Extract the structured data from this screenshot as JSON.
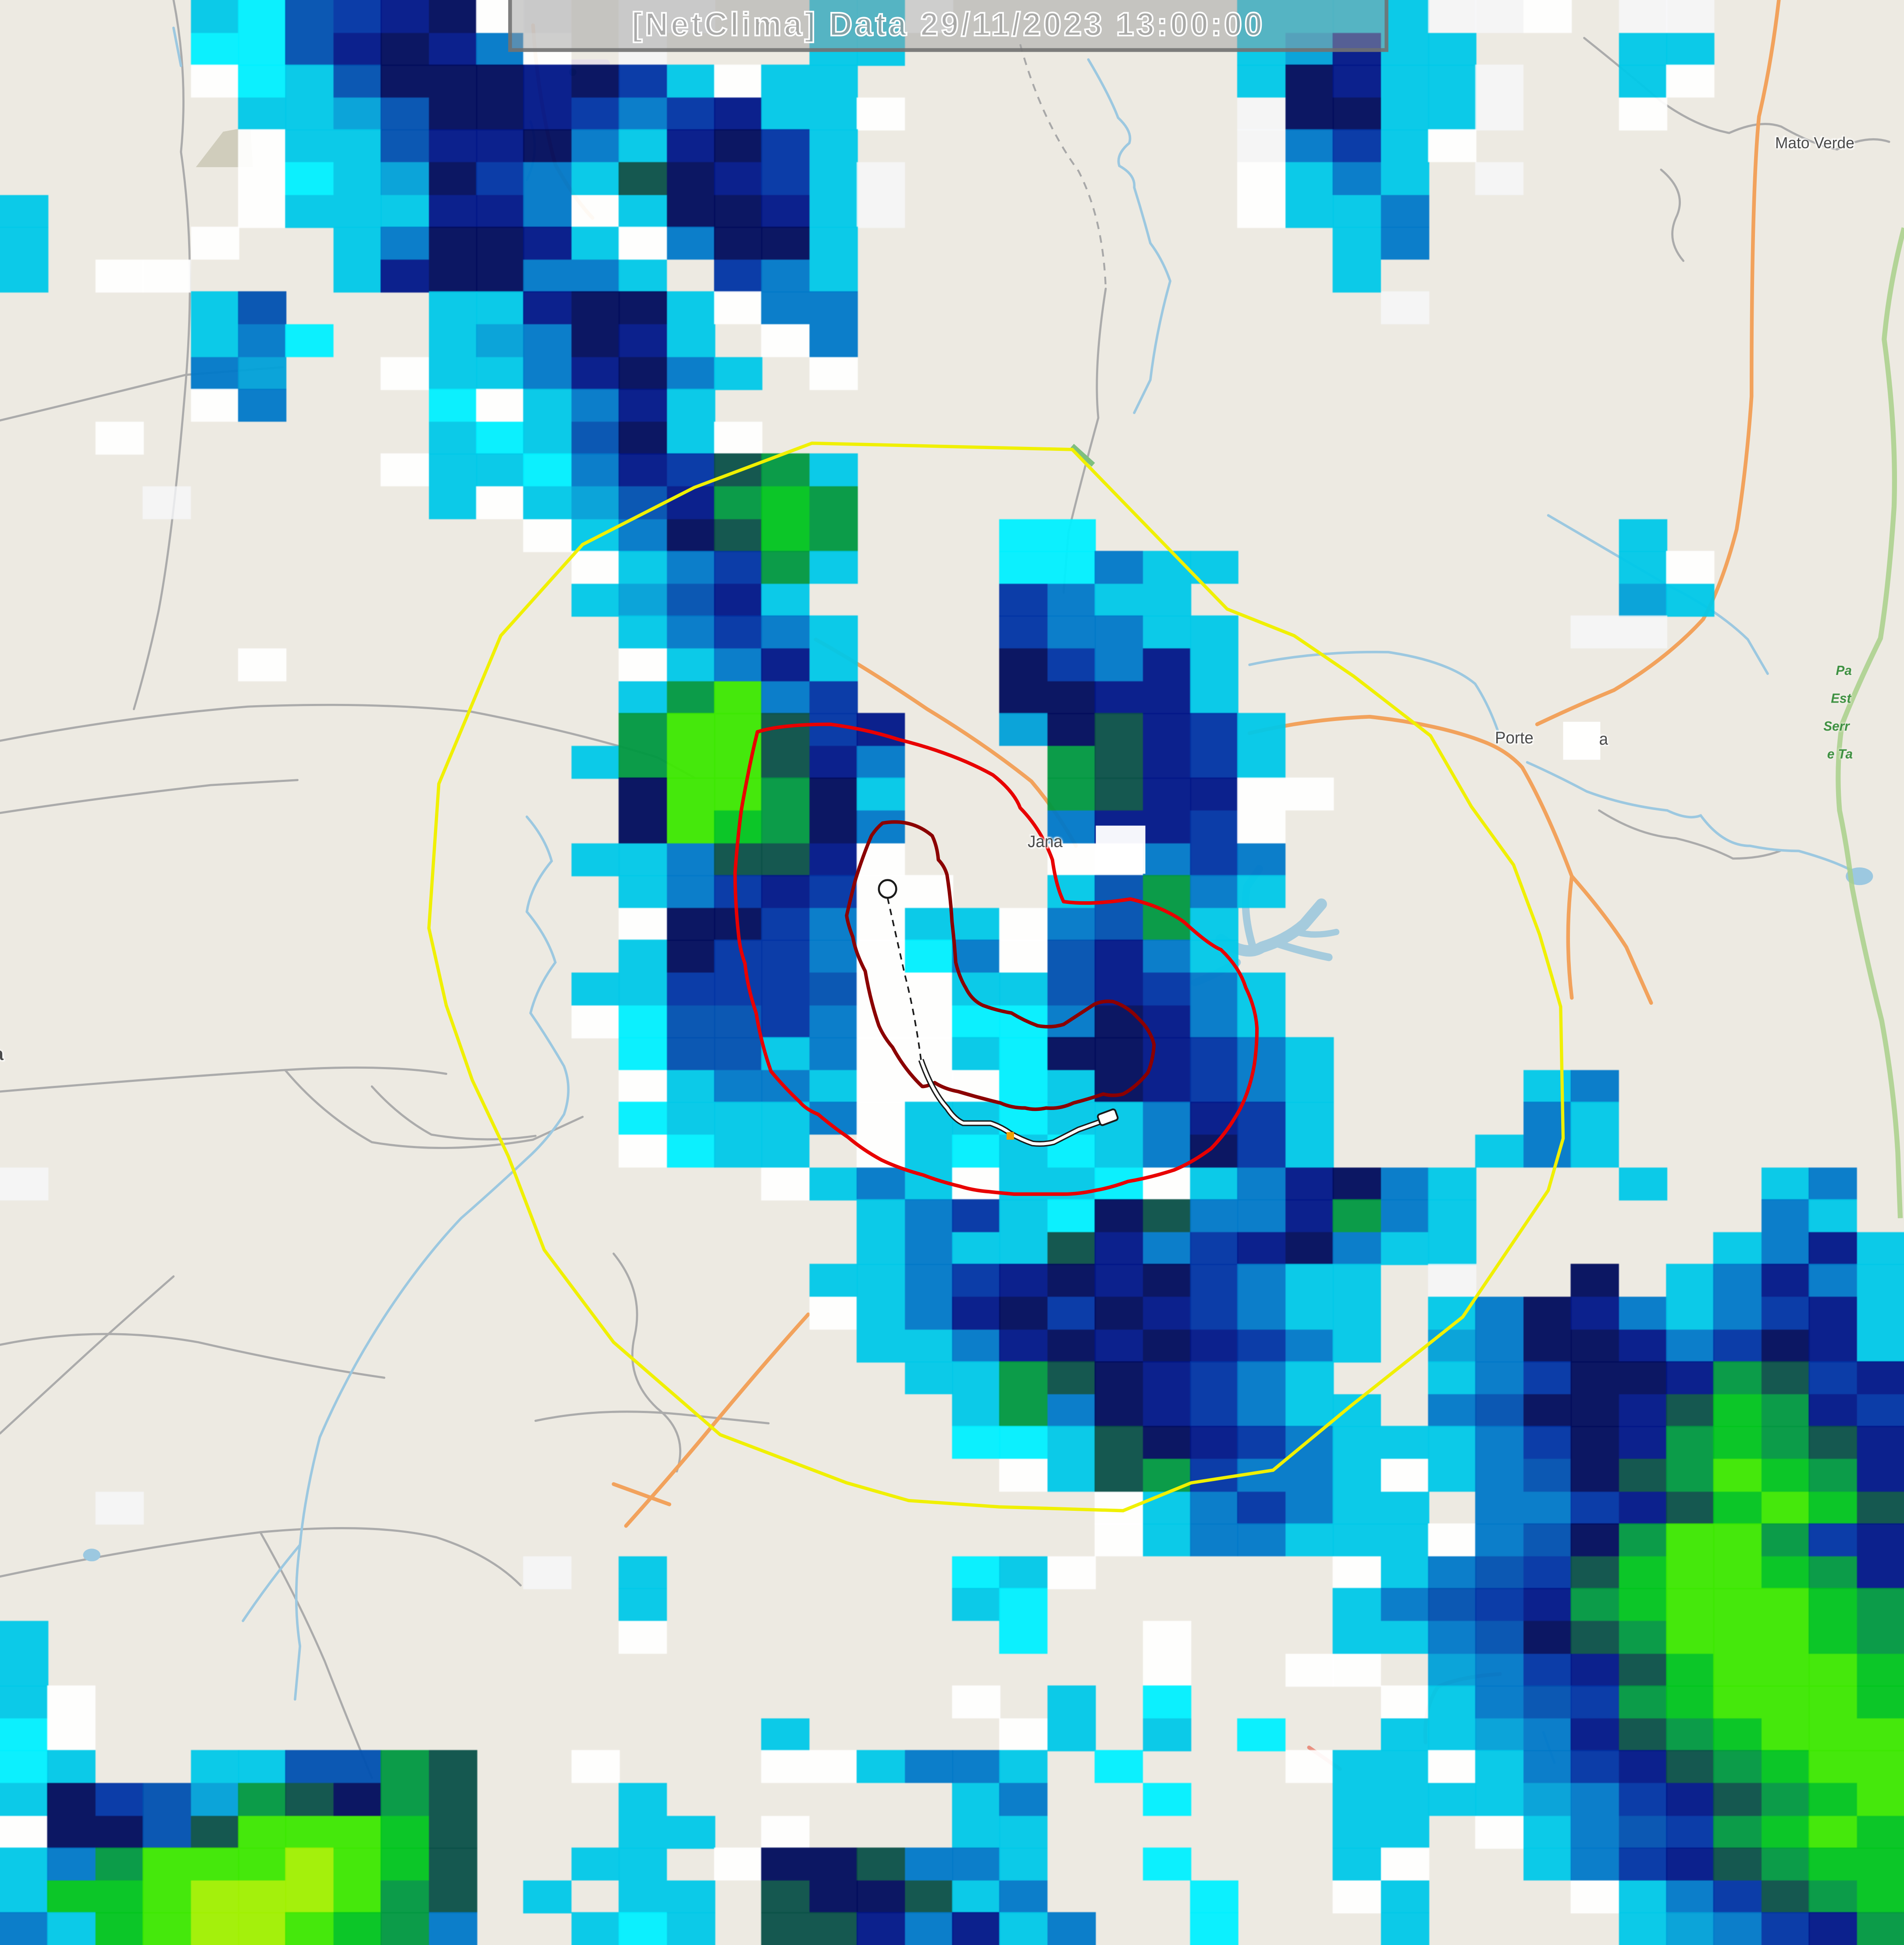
{
  "title_bar": {
    "text": "[NetClima] Data 29/11/2023 13:00:00"
  },
  "map_labels": {
    "city_top_right": "Mato Verde",
    "city_right_part1": "Porte",
    "city_right_part2": "a",
    "city_center": "Jana",
    "city_left_clipped": "a",
    "park_lines": [
      "Pa",
      "Est",
      "Serr",
      "e Ta"
    ]
  },
  "overlays": {
    "range_ring_color": "#F0F000",
    "warning_ring_color": "#E80000",
    "severe_ring_color": "#8B0000",
    "track_color": "#FFFFFF",
    "track_casing_color": "#1A1A1A",
    "track_marker_color": "#F0A000"
  },
  "basemap_colors": {
    "land": "#EDEAE2",
    "road_minor": "#ABABAB",
    "road_major": "#F2A25C",
    "road_secondary": "#E89080",
    "water": "#9CC8E0",
    "park_boundary": "#A8D08A",
    "urban": "#D0CDBC"
  },
  "radar": {
    "cols": 40,
    "rows": 60,
    "cell_w": 38.4,
    "cell_h": 25.6,
    "palette": {
      "w": "rgba(255,255,255,0.93)",
      "f": "rgba(246,248,250,0.80)",
      "a": "rgba(0,240,255,0.95)",
      "c": "rgba(0,200,232,0.95)",
      "l": "rgba(0,160,216,0.95)",
      "b": "rgba(0,120,200,0.95)",
      "B": "rgba(0,80,176,0.95)",
      "n": "rgba(0,52,164,0.95)",
      "d": "rgba(0,22,136,0.95)",
      "k": "rgba(0,12,92,0.95)",
      "t": "rgba(10,80,72,0.95)",
      "g": "rgba(0,152,64,0.95)",
      "h": "rgba(0,196,30,0.95)",
      "G": "rgba(60,232,0,0.95)",
      "Y": "rgba(160,240,0,0.95)"
    },
    "grid": [
      "....caBndkwf.ff..ccw......ccccffw.ff....",
      "....aaBdkdbw.f...cc.......cldcc...cc....",
      "....wacBkkkdkncwcc........ckdccf..cw....",
      ".....cclBkkdnbndccw.......fkkccf..w.....",
      ".....wccBddkbcdknc........fbncw.........",
      ".....waclknbctkdncf.......wcbc.f........",
      "c....wcccddbwckkdcf.......wccb..........",
      "c...w..cbkkdcwbkkc..........cb..........",
      "c.ww...cdkkbbc.nbc..........c...........",
      "....cB...ccdkkcwbb...........f..........",
      "....cba..clbkdc.wb......................",
      "....bl..wccbdkbc.w......................",
      "....wb...awcbdc.........................",
      "..w......cacBkcw........................",
      "........wccabdntgc......................",
      "...f.....cwclBdghg......................",
      ".........._wcbkthg...aa...........c.....",
      "............wcbngc...aabcc........cw....",
      "............clBdc....nbcc.........lc....",
      ".............cbnbc...nbbcc.......ff.....",
      ".....w.......wcbdc...knbdc..............",
      ".............cgGbn...kkddc..............",
      ".............gGGtnd..lktdnc.............",
      "............cgGGtdb...gtdnc.............",
      ".............kGGgkc...gtddww............",
      ".............kGhgkb...bddnw.............",
      "............ccbttdw...wwbnb.............",
      ".............cbndnww..cBgbc.............",
      ".............wkknbwccwbBgc..............",
      ".............cknnbwabwBdbc..............",
      "............ccnnnBwwccBdnbc.............",
      "............waBBnbwwaabkdbc.............",
      ".............aBBcbwwcakkdnbc............",
      ".............wcbbcwwwackdnbc....cb......",
      ".............acccbwccaccbdnc....bc......",
      ".............wacc.wcacacbknc...cbc......",
      "f...............wcbcwccawcbdkbc...c..cb.",
      "..................cbncaktbbdgbc......bc.",
      "..................cbcctdbndkbcc.....cbdc",
      ".................ccbndkdknbcc.f..k.cbdbc",
      ".................wcbdknkdnbcc.cbkdbcbndc",
      "..................ccbdkdkdnbc.lbkkdbnkdc",
      "...................ccgtkdnbc..cbnkkdgtnd",
      "....................cgbkdnbcc.bBkkdthgdn",
      ".................. .aactkdnbcccbnkdghgtd",
      ".....................wctgnbbcwcbBktgGhgd",
      "..f....................wcbnbcc.bbndthGht",
      ".......................wcbbcccwbBkgGGgnd",
      "...........f.c......acw.....wcbBnthGGhgd",
      ".............c......ca......cbBndghGGGhg",
      "c............w.......a..w...ccbBktgGGGhg",
      "c.......................w..ww.lbndthGGGh",
      "cw..................w.c.a....wcbBnghGGGh",
      "aw..............c....wc.c.a..cclbdtghGGG",
      "ac..ccBBgt..w...wwcbbc.a...wccwcbndtghGG",
      "cknBlgtkgt...c......cb..a...cccclbndtghG",
      "wkkBtGGGht...cc.w...cc......cc.wcbBnghGh",
      "cbgGGGYGht..cc.wkktbbc..a...cw..cbndtghh",
      "chhGYYYGgt.c.cc.tkktcb...a..wc...wcbntgh",
      "bchGYYGhgb..cac.ttdbdcb..a...c....clbndg"
    ]
  }
}
